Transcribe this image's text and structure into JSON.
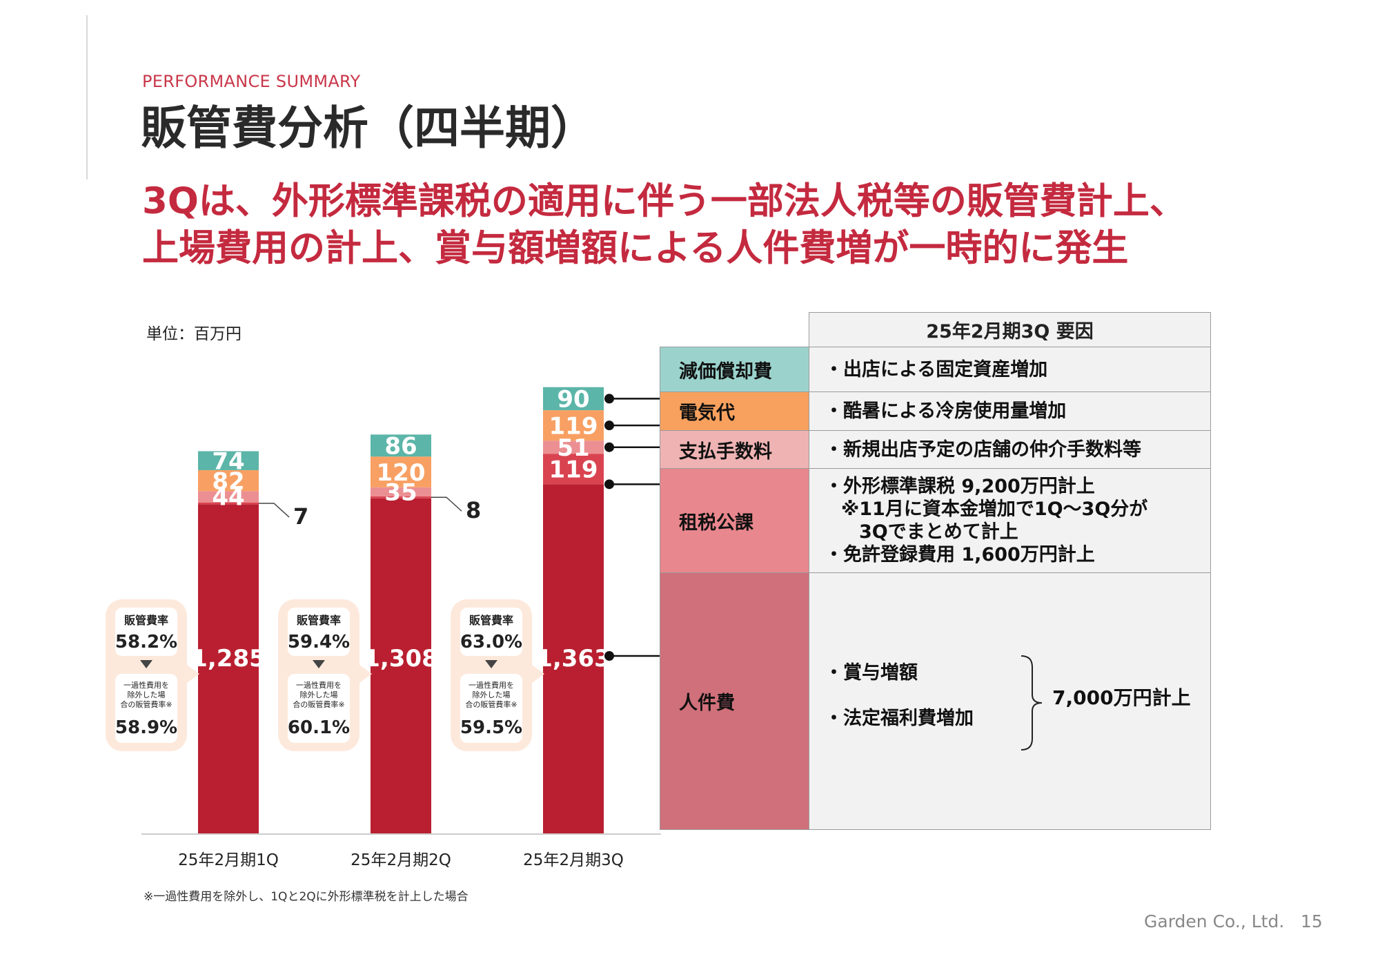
{
  "header": {
    "subtitle": "PERFORMANCE SUMMARY",
    "title": "販管費分析（四半期）",
    "headline_line1": "3Qは、外形標準課税の適用に伴う一部法人税等の販管費計上、",
    "headline_line2": "上場費用の計上、賞与額増額による人件費増が一時的に発生"
  },
  "unit_label": "単位：百万円",
  "chart_data": {
    "type": "bar",
    "stacked": true,
    "categories": [
      "25年2月期1Q",
      "25年2月期2Q",
      "25年2月期3Q"
    ],
    "series": [
      {
        "name": "人件費",
        "color": "#b91f30",
        "values": [
          1285,
          1308,
          1363
        ]
      },
      {
        "name": "租税公課",
        "color": "#d9434f",
        "values": [
          7,
          8,
          119
        ]
      },
      {
        "name": "支払手数料",
        "color": "#eb8f92",
        "values": [
          44,
          35,
          51
        ]
      },
      {
        "name": "電気代",
        "color": "#f8a063",
        "values": [
          82,
          120,
          119
        ]
      },
      {
        "name": "減価償却費",
        "color": "#5bb5a8",
        "values": [
          74,
          86,
          90
        ]
      }
    ],
    "ratio_boxes": [
      {
        "label": "販管費率",
        "value": "58.2%",
        "sub_label": "一過性費用を除外した場合の販管費率※",
        "sub_value": "58.9%"
      },
      {
        "label": "販管費率",
        "value": "59.4%",
        "sub_label": "一過性費用を除外した場合の販管費率※",
        "sub_value": "60.1%"
      },
      {
        "label": "販管費率",
        "value": "63.0%",
        "sub_label": "一過性費用を除外した場合の販管費率※",
        "sub_value": "59.5%"
      }
    ]
  },
  "factors_table": {
    "header": "25年2月期3Q  要因",
    "rows": [
      {
        "category": "減価償却費",
        "color": "#9bd3cc",
        "lines": [
          "・出店による固定資産増加"
        ]
      },
      {
        "category": "電気代",
        "color": "#f8a15e",
        "lines": [
          "・酷暑による冷房使用量増加"
        ]
      },
      {
        "category": "支払手数料",
        "color": "#efb3b3",
        "lines": [
          "・新規出店予定の店舗の仲介手数料等"
        ]
      },
      {
        "category": "租税公課",
        "color": "#e8878d",
        "lines": [
          "・外形標準課税 9,200万円計上",
          "※11月に資本金増加で1Q〜3Q分が",
          "3Qでまとめて計上",
          "・免許登録費用 1,600万円計上"
        ]
      },
      {
        "category": "人件費",
        "color": "#d0707a",
        "lines": [
          "・賞与増額",
          "・法定福利費増加"
        ],
        "bracket_note": "7,000万円計上"
      }
    ]
  },
  "footnote": "※一過性費用を除外し、1Qと2Qに外形標準税を計上した場合",
  "footer": {
    "company": "Garden Co., Ltd.",
    "page": "15"
  }
}
